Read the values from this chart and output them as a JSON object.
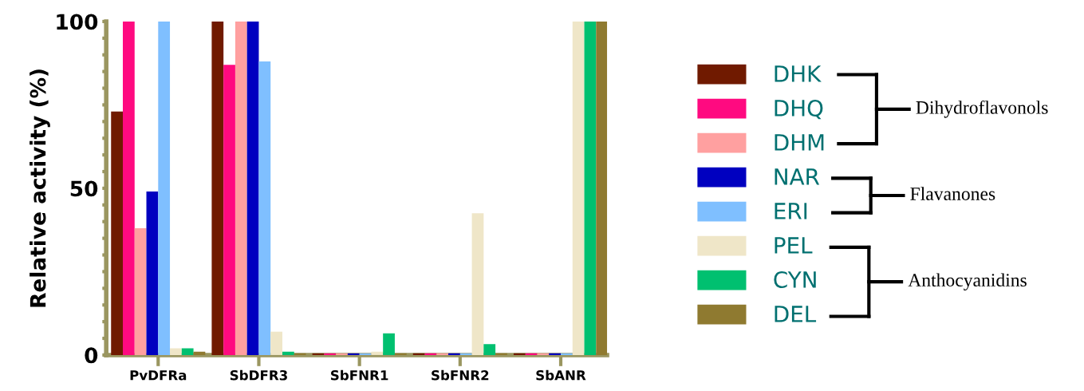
{
  "chart_data": {
    "type": "bar",
    "ylabel": "Relative activity (%)",
    "categories": [
      "PvDFRa",
      "SbDFR3",
      "SbFNR1",
      "SbFNR2",
      "SbANR"
    ],
    "series": [
      {
        "name": "DHK",
        "color": "#701a00",
        "values": [
          73,
          100,
          0.5,
          0.5,
          0.5
        ]
      },
      {
        "name": "DHQ",
        "color": "#ff0a80",
        "values": [
          100,
          87,
          0.5,
          0.5,
          0.5
        ]
      },
      {
        "name": "DHM",
        "color": "#ffa0a0",
        "values": [
          38,
          100,
          0.5,
          0.5,
          0.5
        ]
      },
      {
        "name": "NAR",
        "color": "#0000c0",
        "values": [
          49,
          100,
          0.5,
          0.5,
          0.5
        ]
      },
      {
        "name": "ERI",
        "color": "#7fbfff",
        "values": [
          100,
          88,
          0.5,
          0.5,
          0.5
        ]
      },
      {
        "name": "PEL",
        "color": "#efe6c8",
        "values": [
          2,
          7,
          1,
          42.5,
          100
        ]
      },
      {
        "name": "CYN",
        "color": "#00c070",
        "values": [
          2,
          1,
          6.5,
          3.3,
          100
        ]
      },
      {
        "name": "DEL",
        "color": "#8f7a30",
        "values": [
          1,
          0.5,
          0.5,
          0.5,
          100
        ]
      }
    ],
    "annotations": [
      "Dihydroflavonols",
      "Flavanones",
      "Anthocyanidins"
    ],
    "ylim": [
      0,
      100
    ],
    "yticks": [
      0,
      {
        "value": 5,
        "label": null
      },
      {
        "value": 10,
        "label": null
      },
      {
        "value": 15,
        "label": null
      },
      {
        "value": 20,
        "label": null
      },
      {
        "value": 25,
        "label": null
      },
      {
        "value": 30,
        "label": null
      },
      {
        "value": 35,
        "label": null
      },
      {
        "value": 40,
        "label": null
      },
      {
        "value": 45,
        "label": null
      },
      50,
      {
        "value": 55,
        "label": null
      },
      {
        "value": 60,
        "label": null
      },
      {
        "value": 65,
        "label": null
      },
      {
        "value": 70,
        "label": null
      },
      {
        "value": 75,
        "label": null
      },
      {
        "value": 80,
        "label": null
      },
      {
        "value": 85,
        "label": null
      },
      {
        "value": 90,
        "label": null
      },
      {
        "value": 95,
        "label": null
      },
      100
    ],
    "grid": false,
    "legend": "right"
  }
}
